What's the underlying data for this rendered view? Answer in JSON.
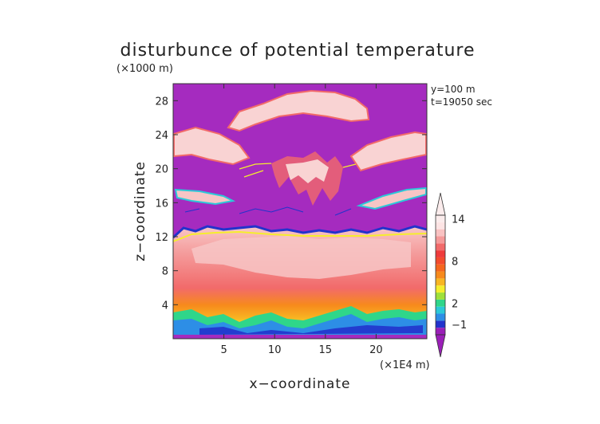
{
  "chart_data": {
    "type": "heatmap",
    "title": "disturbunce of potential temperature",
    "z_unit": "(×1000 m)",
    "x_unit": "(×1E4 m)",
    "xlabel": "x−coordinate",
    "ylabel": "z−coordinate",
    "annotations": [
      "y=100 m",
      "t=19050 sec"
    ],
    "x_ticks": [
      5,
      10,
      15,
      20
    ],
    "y_ticks": [
      4,
      8,
      12,
      16,
      20,
      24,
      28
    ],
    "x_tick_labels": [
      "5",
      "10",
      "15",
      "20"
    ],
    "y_tick_labels": [
      "4",
      "8",
      "12",
      "16",
      "20",
      "24",
      "28"
    ],
    "xlim": [
      0,
      25
    ],
    "ylim": [
      0,
      30
    ],
    "colorbar": {
      "levels": [
        -2,
        -1,
        0,
        1,
        2,
        3,
        4,
        5,
        6,
        7,
        8,
        9,
        10,
        11,
        12,
        13,
        14,
        15
      ],
      "tick_values": [
        -1,
        2,
        8,
        14
      ],
      "tick_labels": [
        "−1",
        "2",
        "8",
        "14"
      ],
      "colors": [
        "#9b1fb8",
        "#2233cc",
        "#2d8ee6",
        "#2bc9d8",
        "#2fd68a",
        "#9fe03a",
        "#f5ee2c",
        "#f8b622",
        "#f78a1c",
        "#f5661e",
        "#f34b2d",
        "#ef3b3b",
        "#f26a6a",
        "#f59a9a",
        "#f9c2c2",
        "#fde4e4",
        "#fbecec"
      ],
      "extend": "both"
    },
    "grid": false,
    "legend": "colorbar-right"
  }
}
